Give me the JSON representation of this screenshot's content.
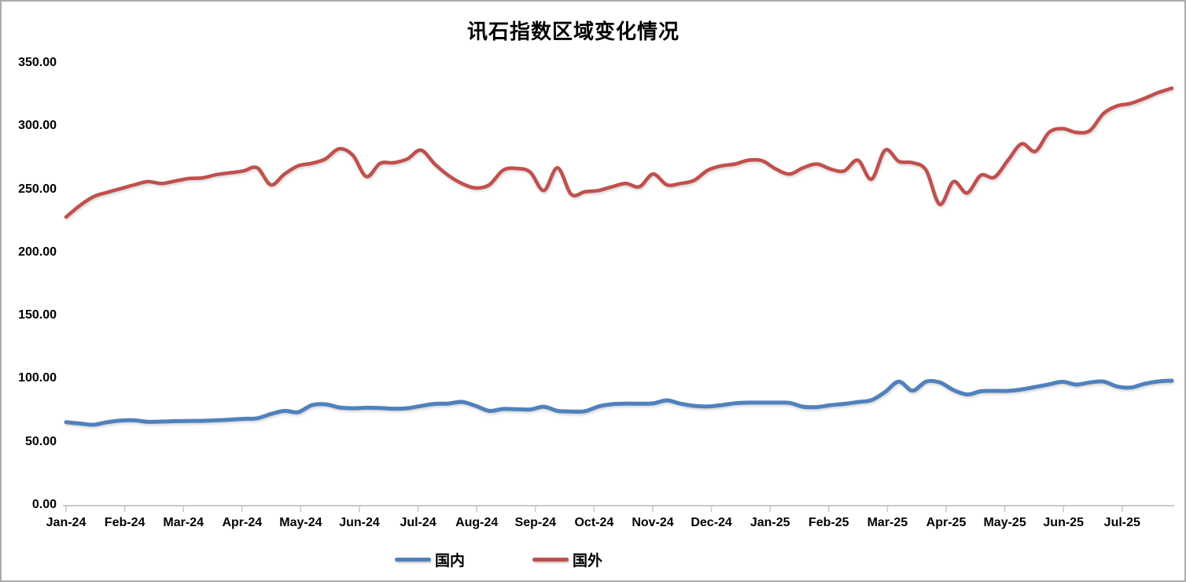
{
  "chart_data": {
    "type": "line",
    "title": "讯石指数区域变化情况",
    "xlabel": "",
    "ylabel": "",
    "x_unit": "week",
    "grid": false,
    "legend_position": "bottom-center",
    "ylim": [
      0,
      350
    ],
    "y_ticks": [
      {
        "value": 0,
        "label": "0.00"
      },
      {
        "value": 50,
        "label": "50.00"
      },
      {
        "value": 100,
        "label": "100.00"
      },
      {
        "value": 150,
        "label": "150.00"
      },
      {
        "value": 200,
        "label": "200.00"
      },
      {
        "value": 250,
        "label": "250.00"
      },
      {
        "value": 300,
        "label": "300.00"
      },
      {
        "value": 350,
        "label": "350.00"
      }
    ],
    "x_tick_labels": [
      "Jan-24",
      "Feb-24",
      "Mar-24",
      "Apr-24",
      "May-24",
      "Jun-24",
      "Jul-24",
      "Aug-24",
      "Sep-24",
      "Oct-24",
      "Nov-24",
      "Dec-24",
      "Jan-25",
      "Feb-25",
      "Mar-25",
      "Apr-25",
      "May-25",
      "Jun-25",
      "Jul-25"
    ],
    "axis_color": "#c9c9c9",
    "series": [
      {
        "name": "国内",
        "color": "#4F81BD",
        "stroke_width": 5,
        "values": [
          65.5,
          64.5,
          63.5,
          65.5,
          66.8,
          67,
          65.8,
          66,
          66.3,
          66.5,
          66.6,
          67,
          67.5,
          68.2,
          68.6,
          72,
          74.5,
          73.5,
          79,
          79.7,
          77.2,
          76.6,
          77,
          76.8,
          76.2,
          76.6,
          78.4,
          80,
          80.3,
          81.6,
          78.5,
          74.5,
          76,
          75.8,
          75.6,
          77.8,
          74.5,
          74,
          74.2,
          78,
          79.8,
          80.2,
          80.2,
          80.4,
          82.8,
          80.2,
          78.5,
          78,
          79,
          80.5,
          81,
          81,
          81,
          80.8,
          77.8,
          77.5,
          79,
          80,
          81.5,
          83,
          89.5,
          97.7,
          90.5,
          97.7,
          97,
          91,
          87.5,
          90,
          90.3,
          90.3,
          91.5,
          93.4,
          95.5,
          97.5,
          95.3,
          97,
          97.7,
          93.8,
          93,
          96,
          97.8,
          98.4
        ]
      },
      {
        "name": "国外",
        "color": "#C0504D",
        "stroke_width": 4.5,
        "values": [
          228,
          237,
          244,
          247.5,
          250.5,
          253.5,
          256,
          254.5,
          256.5,
          258.5,
          259,
          261.5,
          263,
          264.5,
          267,
          253.5,
          262,
          268.5,
          270.5,
          274,
          282,
          277,
          260,
          270.5,
          271,
          274,
          281,
          270,
          261,
          254.5,
          251,
          253.5,
          265,
          266.5,
          263.5,
          249,
          267,
          246,
          248,
          249,
          252,
          254.5,
          252,
          262,
          253.5,
          254.5,
          257,
          265,
          268.5,
          270,
          273,
          272.5,
          266,
          262,
          267,
          270,
          266,
          264.5,
          273,
          258,
          281,
          272,
          271,
          265,
          238,
          256,
          247,
          261,
          259.5,
          273,
          286,
          280,
          295,
          298,
          295,
          296.5,
          310,
          316,
          318,
          322,
          326.5,
          330
        ]
      }
    ]
  }
}
